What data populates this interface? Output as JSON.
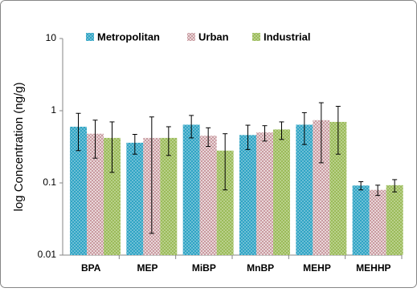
{
  "chart_data": {
    "type": "bar",
    "log_scale": true,
    "y_label": "log Concentration (ng/g)",
    "categories": [
      "BPA",
      "MEP",
      "MiBP",
      "MnBP",
      "MEHP",
      "MEHHP"
    ],
    "series": [
      {
        "name": "Metropolitan",
        "color": "#2fa4c4",
        "values": [
          0.6,
          0.36,
          0.64,
          0.46,
          0.64,
          0.092
        ],
        "errors": [
          0.32,
          0.11,
          0.22,
          0.17,
          0.3,
          0.012
        ]
      },
      {
        "name": "Urban",
        "color": "#c99aa0",
        "values": [
          0.48,
          0.42,
          0.45,
          0.5,
          0.74,
          0.08
        ],
        "errors": [
          0.26,
          0.4,
          0.13,
          0.12,
          0.55,
          0.013
        ]
      },
      {
        "name": "Industrial",
        "color": "#9bbb59",
        "values": [
          0.42,
          0.42,
          0.28,
          0.55,
          0.7,
          0.093
        ],
        "errors": [
          0.28,
          0.18,
          0.2,
          0.15,
          0.45,
          0.018
        ]
      }
    ],
    "ylim": [
      0.01,
      10
    ],
    "yticks": [
      0.01,
      0.1,
      1,
      10
    ],
    "legend": "top"
  }
}
